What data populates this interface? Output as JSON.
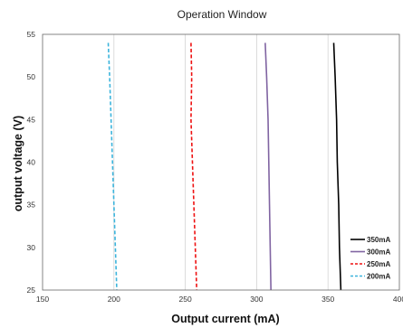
{
  "chart_data": {
    "type": "line",
    "title": "Operation Window",
    "xlabel": "Output current (mA)",
    "ylabel": "output voltage (V)",
    "xlim": [
      150,
      400
    ],
    "ylim": [
      25,
      55
    ],
    "xticks": [
      "150",
      "200",
      "250",
      "300",
      "350",
      "400"
    ],
    "yticks": [
      "25",
      "30",
      "35",
      "40",
      "45",
      "50",
      "55"
    ],
    "grid": "vertical",
    "legend": "bottom-right",
    "series": [
      {
        "name": "350mA",
        "color": "#000000",
        "dash": "solid",
        "points": [
          [
            354,
            54
          ],
          [
            355,
            50
          ],
          [
            356,
            45
          ],
          [
            356.5,
            40
          ],
          [
            357.5,
            35
          ],
          [
            358,
            30
          ],
          [
            359,
            25
          ]
        ]
      },
      {
        "name": "300mA",
        "color": "#8064a2",
        "dash": "solid",
        "points": [
          [
            306,
            54
          ],
          [
            307,
            50
          ],
          [
            308,
            45
          ],
          [
            308.5,
            40
          ],
          [
            309,
            35
          ],
          [
            309.5,
            30
          ],
          [
            310,
            25
          ]
        ]
      },
      {
        "name": "250mA",
        "color": "#ee1111",
        "dash": "dashed",
        "points": [
          [
            254,
            54
          ],
          [
            254.5,
            50
          ],
          [
            254,
            45
          ],
          [
            255,
            40
          ],
          [
            256,
            35
          ],
          [
            257,
            30
          ],
          [
            258,
            25
          ]
        ]
      },
      {
        "name": "200mA",
        "color": "#3cb4dc",
        "dash": "dashed",
        "points": [
          [
            196,
            54
          ],
          [
            197,
            50
          ],
          [
            198,
            45
          ],
          [
            199,
            40
          ],
          [
            200,
            35
          ],
          [
            201,
            30
          ],
          [
            202,
            25
          ]
        ]
      }
    ]
  }
}
